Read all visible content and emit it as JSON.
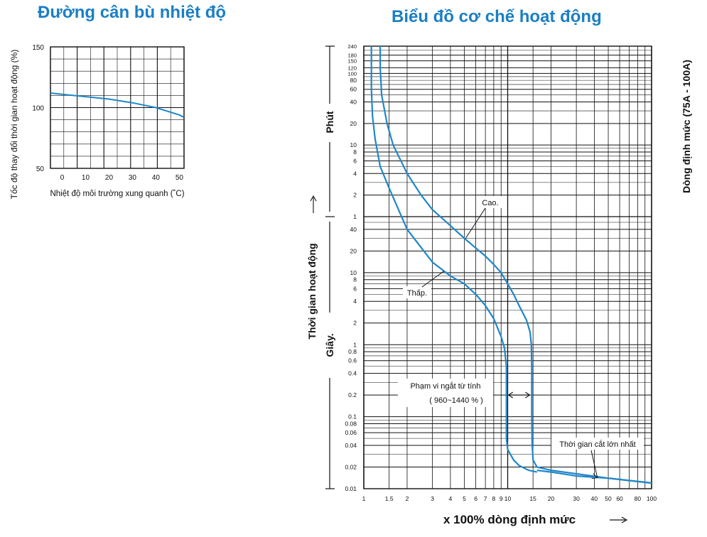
{
  "chart_data": [
    {
      "type": "line",
      "title": "Đường cân bù nhiệt độ",
      "xlabel": "Nhiệt độ môi trường xung quanh (˚C)",
      "ylabel": "Tốc độ thay đổi thời gian hoạt động (%)",
      "xlim": [
        -5,
        52
      ],
      "ylim": [
        50,
        150
      ],
      "xticks": [
        0,
        10,
        20,
        30,
        40,
        50
      ],
      "yticks": [
        50,
        100,
        150
      ],
      "grid": true,
      "line_color": "#1f87c9",
      "series": [
        {
          "x": [
            -5,
            0,
            10,
            20,
            30,
            40,
            50,
            52
          ],
          "y": [
            112,
            111,
            109,
            107,
            104,
            100,
            94,
            92
          ]
        }
      ]
    },
    {
      "type": "line",
      "title": "Biểu đồ cơ chế hoạt động",
      "xlabel": "x 100% dòng định mức",
      "ylabel": "Thời gian hoạt động",
      "right_label": "Dòng định mức (75A - 100A)",
      "minutes_label": "Phút",
      "seconds_label": "Giây.",
      "x_scale": "log",
      "y_scale": "log",
      "xlim": [
        1,
        100
      ],
      "xticks": [
        1,
        1.5,
        2,
        3,
        4,
        5,
        6,
        7,
        8,
        9,
        10,
        15,
        20,
        30,
        40,
        50,
        60,
        80,
        100
      ],
      "xtick_labels": [
        "1",
        "1.5",
        "2",
        "3",
        "4",
        "5",
        "6",
        "7",
        "8",
        "9",
        "10",
        "15",
        "20",
        "30",
        "40",
        "50",
        "60",
        "80",
        "100"
      ],
      "minute_ticks": [
        "240",
        "180",
        "150",
        "120",
        "100",
        "80",
        "60",
        "40",
        "20",
        "10",
        "8",
        "6",
        "4",
        "2",
        "1"
      ],
      "second_ticks": [
        "40",
        "20",
        "10",
        "8",
        "6",
        "4",
        "2",
        "1",
        "0.8",
        "0.6",
        "0.4",
        "0.2",
        "0.1",
        "0.08",
        "0.06",
        "0.04",
        "0.02",
        "0.01"
      ],
      "y_unit": "seconds",
      "ylim_seconds": [
        0.01,
        14400
      ],
      "grid": true,
      "line_color": "#1f87c9",
      "annotations": {
        "high": "Cao.",
        "low": "Thấp.",
        "magnetic_line1": "Phạm vi ngắt từ tính",
        "magnetic_line2": "( 960~1440 % )",
        "max_cut": "Thời gian cắt lớn nhất"
      },
      "series": [
        {
          "name": "Cao.",
          "x": [
            1.3,
            1.3,
            1.33,
            1.45,
            1.6,
            2.0,
            2.5,
            3.0,
            4.0,
            5.0,
            6.0,
            7.0,
            8.0,
            9.0,
            10.0,
            11.0,
            12.0,
            13.5,
            14.3,
            14.6,
            14.7,
            14.7,
            14.8,
            15.0,
            16.0,
            20.0,
            50.0,
            100.0
          ],
          "y": [
            14400,
            7200,
            3000,
            1200,
            600,
            240,
            120,
            75,
            45,
            30,
            22,
            17,
            13,
            10,
            7,
            5,
            3.5,
            2.2,
            1.5,
            1.0,
            0.5,
            0.1,
            0.04,
            0.025,
            0.02,
            0.018,
            0.014,
            0.012
          ]
        },
        {
          "name": "Thấp.",
          "x": [
            1.13,
            1.13,
            1.15,
            1.2,
            1.3,
            1.5,
            2.0,
            3.0,
            4.0,
            5.0,
            6.0,
            7.0,
            8.0,
            9.0,
            9.5,
            9.8,
            9.8,
            9.8,
            10.0,
            11.0,
            12.0,
            14.0,
            16.0
          ],
          "y": [
            14400,
            3600,
            1500,
            720,
            300,
            150,
            40,
            14,
            9,
            7,
            5,
            3.5,
            2.3,
            1.3,
            0.9,
            0.5,
            0.1,
            0.05,
            0.035,
            0.025,
            0.021,
            0.018,
            0.017
          ]
        },
        {
          "name": "Thời gian cắt lớn nhất",
          "x": [
            16.0,
            20.0,
            30.0,
            50.0,
            100.0
          ],
          "y": [
            0.018,
            0.017,
            0.015,
            0.014,
            0.012
          ]
        }
      ]
    }
  ]
}
